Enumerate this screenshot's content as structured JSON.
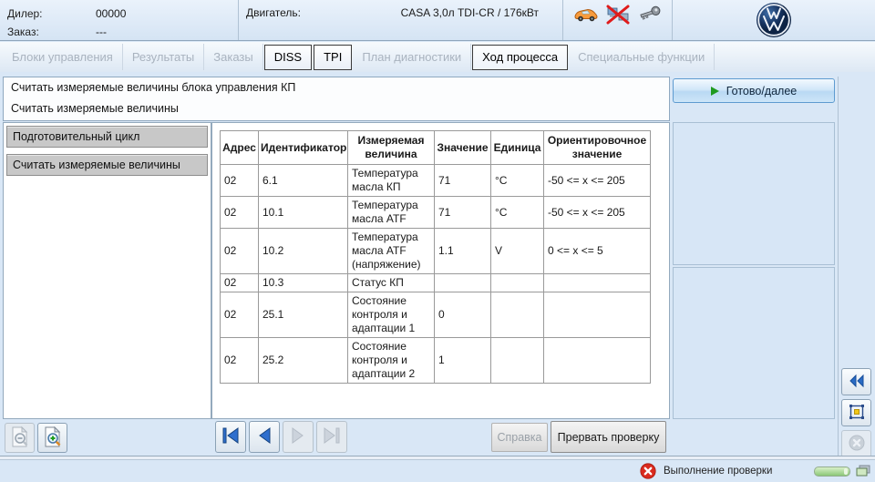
{
  "header": {
    "dealer_label": "Дилер:",
    "dealer_value": "00000",
    "order_label": "Заказ:",
    "order_value": "---",
    "engine_label": "Двигатель:",
    "engine_value": "CASA 3,0л TDI-CR / 176кВт",
    "icons": [
      "car-icon",
      "connection-lost-icon",
      "key-icon",
      "vw-logo"
    ]
  },
  "tabs": [
    {
      "label": "Блоки управления",
      "state": "disabled"
    },
    {
      "label": "Результаты",
      "state": "disabled"
    },
    {
      "label": "Заказы",
      "state": "disabled"
    },
    {
      "label": "DISS",
      "state": "enabled"
    },
    {
      "label": "TPI",
      "state": "enabled"
    },
    {
      "label": "План диагностики",
      "state": "disabled"
    },
    {
      "label": "Ход процесса",
      "state": "active"
    },
    {
      "label": "Специальные функции",
      "state": "disabled"
    }
  ],
  "messages": [
    "Считать измеряемые величины блока управления КП",
    "Считать измеряемые величины"
  ],
  "sidebar": {
    "items": [
      "Подготовительный цикл",
      "Считать измеряемые величины"
    ]
  },
  "table": {
    "headers": [
      "Адрес",
      "Идентификатор",
      "Измеряемая величина",
      "Значение",
      "Единица",
      "Ориентировочное значение"
    ],
    "rows": [
      [
        "02",
        "6.1",
        "Температура масла КП",
        "71",
        "°C",
        "-50 <= x <= 205"
      ],
      [
        "02",
        "10.1",
        "Температура масла ATF",
        "71",
        "°C",
        "-50 <= x <= 205"
      ],
      [
        "02",
        "10.2",
        "Температура масла ATF (напряжение)",
        "1.1",
        "V",
        "0 <= x <= 5"
      ],
      [
        "02",
        "10.3",
        "Статус КП",
        "",
        "",
        ""
      ],
      [
        "02",
        "25.1",
        "Состояние контроля и адаптации 1",
        "0",
        "",
        ""
      ],
      [
        "02",
        "25.2",
        "Состояние контроля и адаптации 2",
        "1",
        "",
        ""
      ]
    ]
  },
  "actions": {
    "ready_next": "Готово/далее",
    "help": "Справка",
    "abort": "Прервать проверку"
  },
  "statusbar": {
    "text": "Выполнение проверки"
  },
  "colors": {
    "accent_blue": "#2a6bc4",
    "status_red": "#d92b1f",
    "progress_green": "#8cc878",
    "panel_bg": "#d9e7f6"
  }
}
